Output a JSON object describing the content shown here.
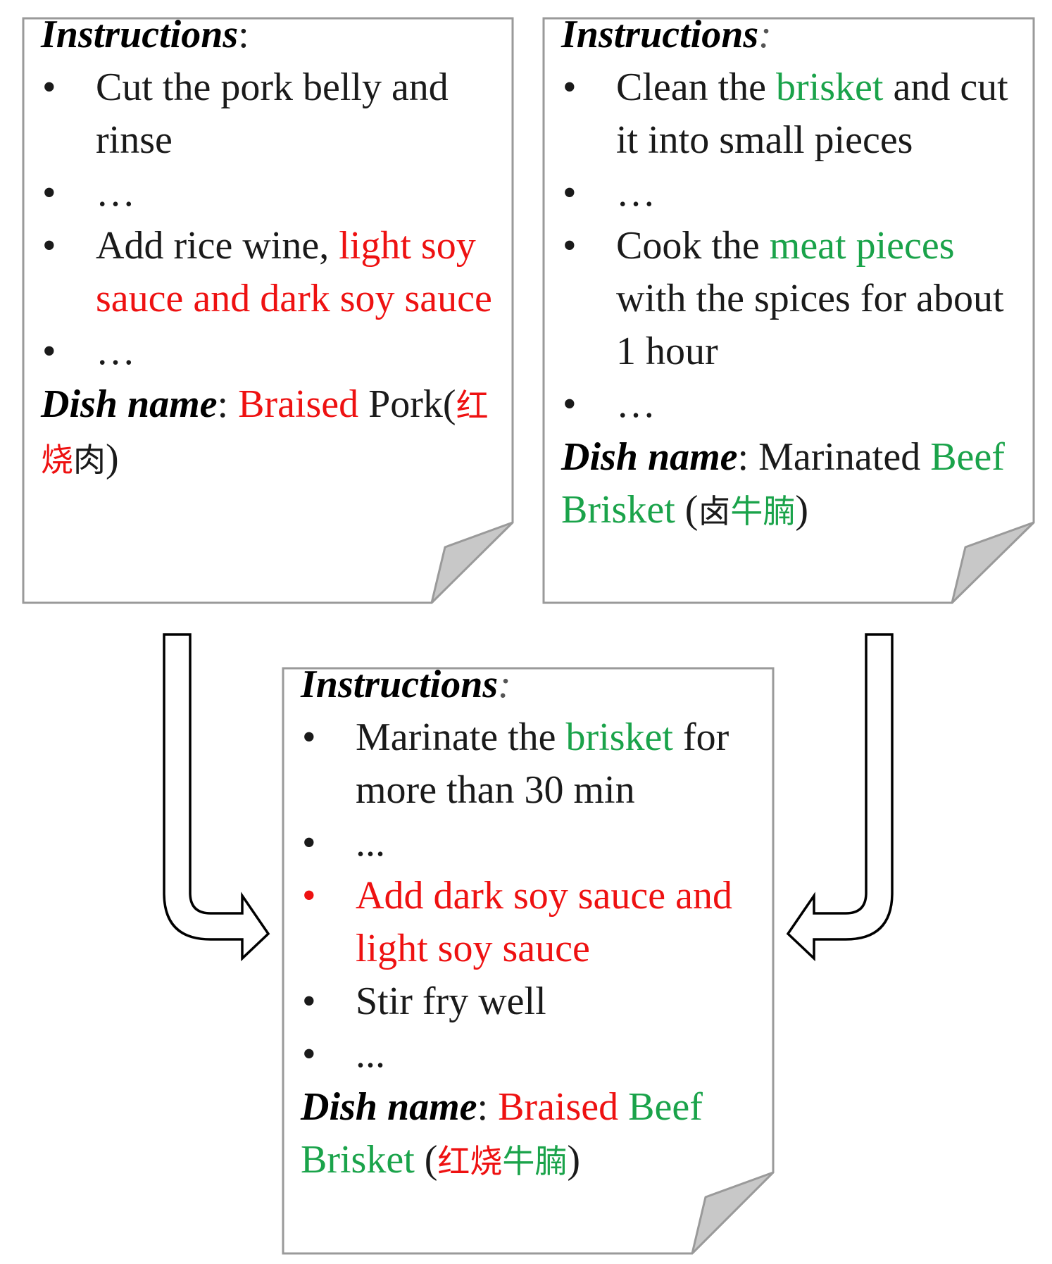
{
  "cards": {
    "left": {
      "instructions_label": "Instructions",
      "colon": ":",
      "steps": [
        {
          "bullet": "•",
          "parts": [
            {
              "text": "Cut the pork belly and rinse",
              "color": "default"
            }
          ]
        },
        {
          "bullet": "•",
          "parts": [
            {
              "text": "…",
              "color": "default"
            }
          ]
        },
        {
          "bullet": "•",
          "parts": [
            {
              "text": "Add rice wine, ",
              "color": "default"
            },
            {
              "text": "light soy sauce and dark soy sauce",
              "color": "red"
            }
          ]
        },
        {
          "bullet": "•",
          "parts": [
            {
              "text": "…",
              "color": "default"
            }
          ]
        }
      ],
      "dish_label": "Dish name",
      "dish_colon": ": ",
      "dish_parts": [
        {
          "text": "Braised",
          "color": "red"
        },
        {
          "text": " Pork",
          "color": "default"
        }
      ],
      "dish_zh_open": "(",
      "dish_zh_parts": [
        {
          "text": "红烧",
          "color": "red"
        },
        {
          "text": "肉",
          "color": "default"
        }
      ],
      "dish_zh_close": ")"
    },
    "right": {
      "instructions_label": "Instructions",
      "colon": ":",
      "steps": [
        {
          "bullet": "•",
          "parts": [
            {
              "text": "Clean the ",
              "color": "default"
            },
            {
              "text": "brisket",
              "color": "green"
            },
            {
              "text": " and cut it into small pieces",
              "color": "default"
            }
          ]
        },
        {
          "bullet": "•",
          "parts": [
            {
              "text": "…",
              "color": "default"
            }
          ]
        },
        {
          "bullet": "•",
          "parts": [
            {
              "text": "Cook the ",
              "color": "default"
            },
            {
              "text": "meat pieces",
              "color": "green"
            },
            {
              "text": " with the spices for about 1 hour",
              "color": "default"
            }
          ]
        },
        {
          "bullet": "•",
          "parts": [
            {
              "text": "…",
              "color": "default"
            }
          ]
        }
      ],
      "dish_label": "Dish name",
      "dish_colon": ": ",
      "dish_parts": [
        {
          "text": "Marinated ",
          "color": "default"
        },
        {
          "text": "Beef Brisket",
          "color": "green"
        }
      ],
      "dish_zh_open": " (",
      "dish_zh_parts": [
        {
          "text": "卤",
          "color": "default"
        },
        {
          "text": "牛腩",
          "color": "green"
        }
      ],
      "dish_zh_close": ")"
    },
    "bottom": {
      "instructions_label": "Instructions",
      "colon": ":",
      "steps": [
        {
          "bullet": "•",
          "bullet_color": "default",
          "parts": [
            {
              "text": "Marinate the ",
              "color": "default"
            },
            {
              "text": "brisket",
              "color": "green"
            },
            {
              "text": " for more than 30 min",
              "color": "default"
            }
          ]
        },
        {
          "bullet": "•",
          "bullet_color": "default",
          "parts": [
            {
              "text": "...",
              "color": "default"
            }
          ]
        },
        {
          "bullet": "•",
          "bullet_color": "red",
          "parts": [
            {
              "text": "Add dark soy sauce and light soy sauce",
              "color": "red"
            }
          ]
        },
        {
          "bullet": "•",
          "bullet_color": "default",
          "parts": [
            {
              "text": "Stir fry well",
              "color": "default"
            }
          ]
        },
        {
          "bullet": "•",
          "bullet_color": "default",
          "parts": [
            {
              "text": "...",
              "color": "default"
            }
          ]
        }
      ],
      "dish_label": "Dish name",
      "dish_colon": ": ",
      "dish_parts": [
        {
          "text": "Braised ",
          "color": "red"
        },
        {
          "text": "Beef Brisket",
          "color": "green"
        }
      ],
      "dish_zh_open": " (",
      "dish_zh_parts": [
        {
          "text": "红烧",
          "color": "red"
        },
        {
          "text": "牛腩",
          "color": "green"
        }
      ],
      "dish_zh_close": ")"
    }
  },
  "colors": {
    "default": "#1a1a1a",
    "red": "#ee1111",
    "green": "#1aa34a",
    "card_border": "#9a9a9a",
    "fold": "#c8c8c8"
  },
  "icons": {
    "left_arrow": "hollow-arrow-down-then-right",
    "right_arrow": "hollow-arrow-down-then-left"
  }
}
